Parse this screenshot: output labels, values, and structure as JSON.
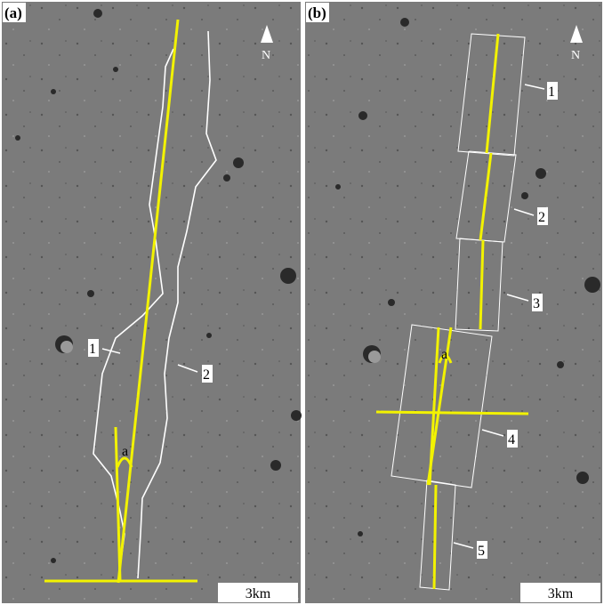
{
  "panels": [
    {
      "label": "(a)",
      "north": "N",
      "scale": "3km",
      "markers": [
        "1",
        "2"
      ],
      "angle": "a"
    },
    {
      "label": "(b)",
      "north": "N",
      "scale": "3km",
      "markers": [
        "1",
        "2",
        "3",
        "4",
        "5"
      ],
      "angle": "a"
    }
  ]
}
